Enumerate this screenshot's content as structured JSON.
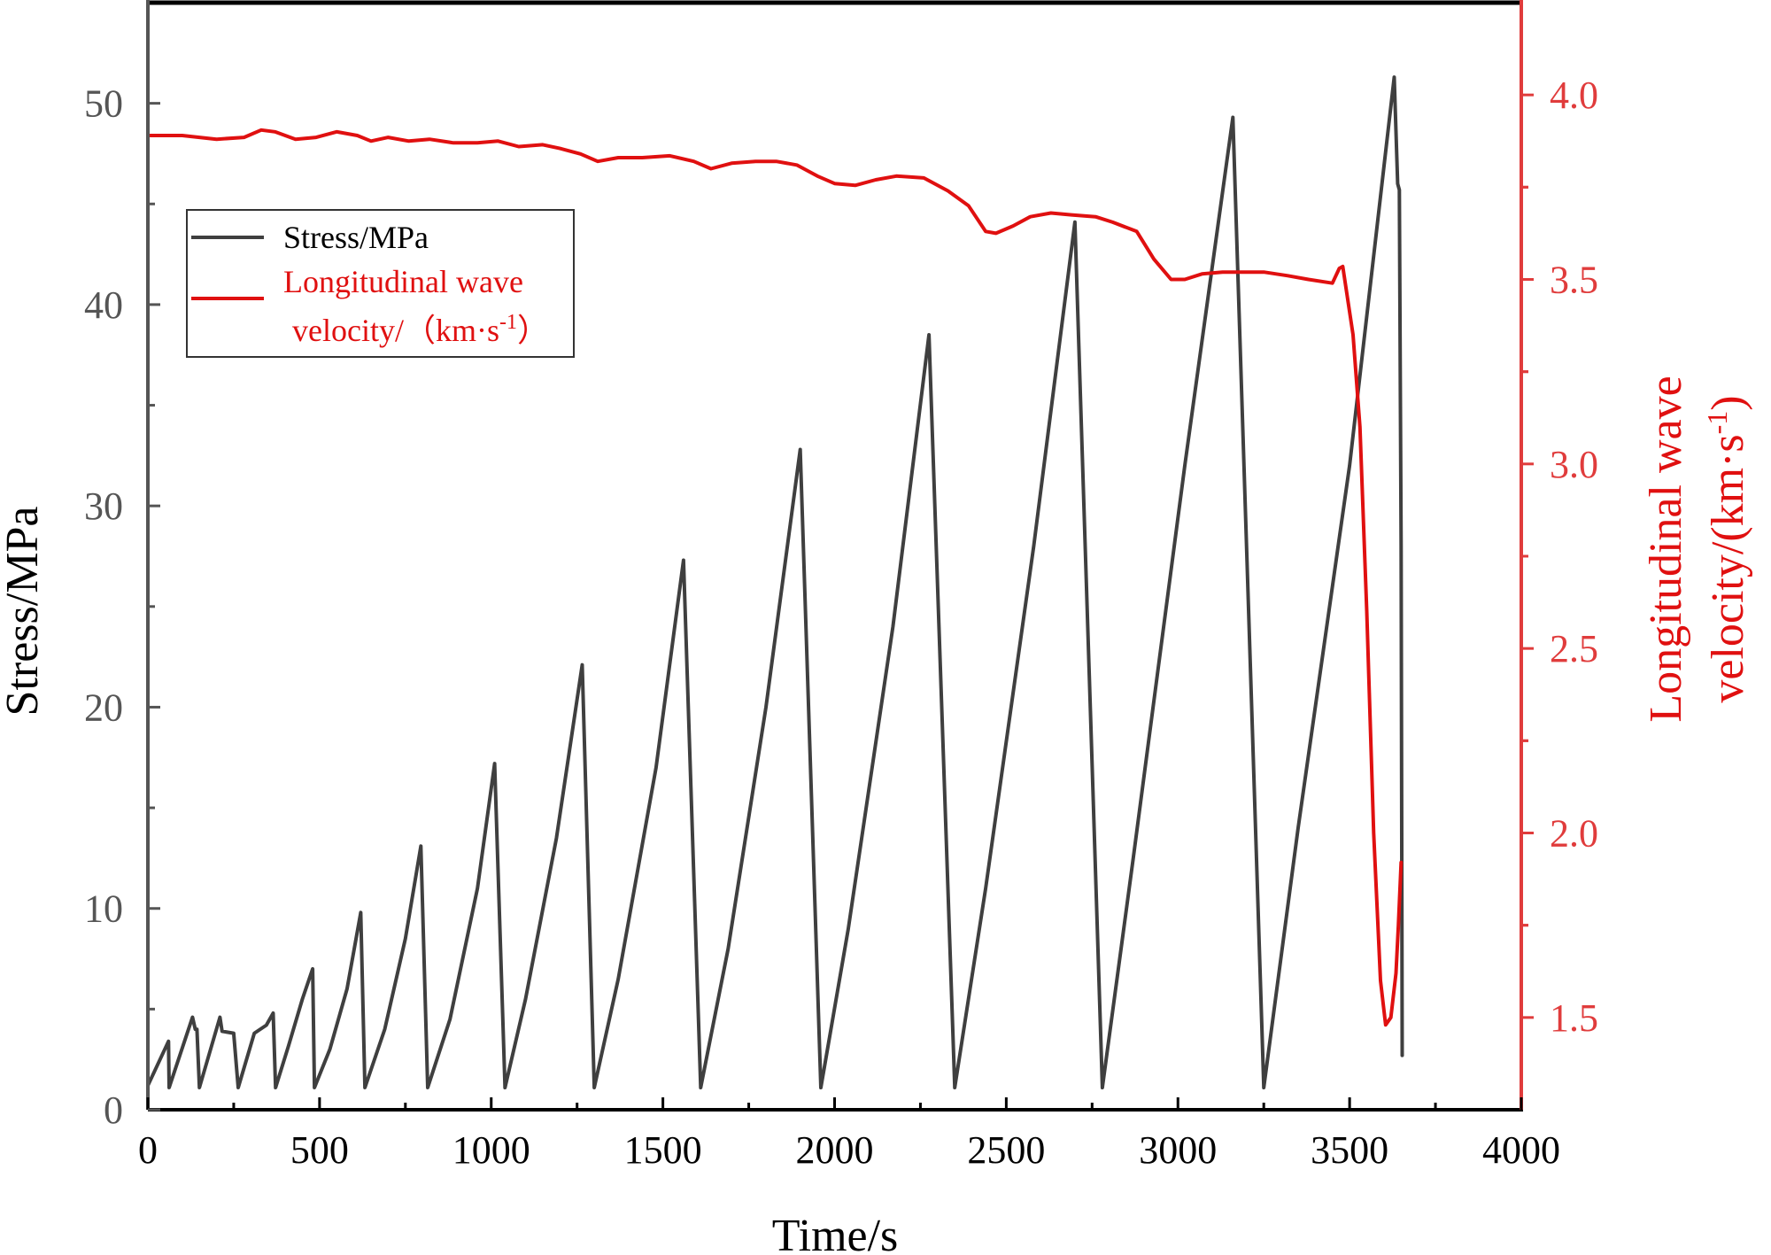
{
  "chart_data": {
    "type": "line",
    "xlabel": "Time/s",
    "ylabel_left": "Stress/MPa",
    "ylabel_right_line1": "Longitudinal wave",
    "ylabel_right_line2": "velocity/(km·s",
    "ylabel_right_sup": "-1",
    "ylabel_right_close": ")",
    "xlim": [
      0,
      4000
    ],
    "ylim_left": [
      0,
      55
    ],
    "ylim_right": [
      1.25,
      4.25
    ],
    "x_ticks": [
      0,
      500,
      1000,
      1500,
      2000,
      2500,
      3000,
      3500,
      4000
    ],
    "x_tick_labels": [
      "0",
      "500",
      "1000",
      "1500",
      "2000",
      "2500",
      "3000",
      "3500",
      "4000"
    ],
    "left_ticks": [
      0,
      10,
      20,
      30,
      40,
      50
    ],
    "left_tick_labels": [
      "0",
      "10",
      "20",
      "30",
      "40",
      "50"
    ],
    "right_ticks": [
      1.5,
      2.0,
      2.5,
      3.0,
      3.5,
      4.0
    ],
    "right_tick_labels": [
      "1.5",
      "2.0",
      "2.5",
      "3.0",
      "3.5",
      "4.0"
    ],
    "grid": false,
    "legend_position": "upper-left",
    "legend": {
      "stress_label": "Stress/MPa",
      "wave_label_line1": "Longitudinal wave",
      "wave_label_line2": "velocity/（km·s",
      "wave_label_sup": "-1",
      "wave_label_close": "）"
    },
    "colors": {
      "stress": "#3f3f3f",
      "wave": "#e01010",
      "right_axis": "#e03c3c",
      "axis": "#555555"
    },
    "series": [
      {
        "name": "Stress/MPa",
        "axis": "left",
        "points": [
          [
            0,
            1.2
          ],
          [
            60,
            3.4
          ],
          [
            62,
            1.1
          ],
          [
            130,
            4.6
          ],
          [
            138,
            4.0
          ],
          [
            143,
            4.0
          ],
          [
            150,
            1.1
          ],
          [
            210,
            4.6
          ],
          [
            216,
            3.9
          ],
          [
            250,
            3.8
          ],
          [
            263,
            1.1
          ],
          [
            310,
            3.8
          ],
          [
            345,
            4.2
          ],
          [
            365,
            4.8
          ],
          [
            372,
            1.1
          ],
          [
            410,
            3.2
          ],
          [
            450,
            5.5
          ],
          [
            480,
            7.0
          ],
          [
            485,
            1.1
          ],
          [
            530,
            3.0
          ],
          [
            580,
            6.0
          ],
          [
            620,
            9.8
          ],
          [
            632,
            1.1
          ],
          [
            690,
            4.0
          ],
          [
            750,
            8.5
          ],
          [
            795,
            13.1
          ],
          [
            815,
            1.1
          ],
          [
            880,
            4.5
          ],
          [
            960,
            11.0
          ],
          [
            1010,
            17.2
          ],
          [
            1040,
            1.1
          ],
          [
            1100,
            5.5
          ],
          [
            1190,
            13.5
          ],
          [
            1265,
            22.1
          ],
          [
            1300,
            1.1
          ],
          [
            1370,
            6.5
          ],
          [
            1480,
            17.0
          ],
          [
            1560,
            27.3
          ],
          [
            1610,
            1.1
          ],
          [
            1690,
            8.0
          ],
          [
            1800,
            20.0
          ],
          [
            1900,
            32.8
          ],
          [
            1960,
            1.1
          ],
          [
            2040,
            9.0
          ],
          [
            2170,
            24.0
          ],
          [
            2275,
            38.5
          ],
          [
            2350,
            1.1
          ],
          [
            2440,
            11.0
          ],
          [
            2580,
            28.0
          ],
          [
            2700,
            44.1
          ],
          [
            2780,
            1.1
          ],
          [
            2870,
            12.5
          ],
          [
            3020,
            32.0
          ],
          [
            3160,
            49.3
          ],
          [
            3250,
            1.1
          ],
          [
            3350,
            14.0
          ],
          [
            3500,
            32.0
          ],
          [
            3630,
            51.3
          ],
          [
            3640,
            46.0
          ],
          [
            3645,
            45.7
          ],
          [
            3648,
            35.0
          ],
          [
            3650,
            28.0
          ],
          [
            3653,
            2.7
          ]
        ]
      },
      {
        "name": "Longitudinal wave velocity/（km·s-1）",
        "axis": "right",
        "points": [
          [
            0,
            3.89
          ],
          [
            100,
            3.89
          ],
          [
            150,
            3.885
          ],
          [
            200,
            3.88
          ],
          [
            280,
            3.885
          ],
          [
            330,
            3.905
          ],
          [
            370,
            3.9
          ],
          [
            430,
            3.88
          ],
          [
            490,
            3.885
          ],
          [
            550,
            3.9
          ],
          [
            610,
            3.89
          ],
          [
            650,
            3.875
          ],
          [
            700,
            3.885
          ],
          [
            760,
            3.875
          ],
          [
            820,
            3.88
          ],
          [
            890,
            3.87
          ],
          [
            960,
            3.87
          ],
          [
            1020,
            3.875
          ],
          [
            1080,
            3.86
          ],
          [
            1150,
            3.865
          ],
          [
            1200,
            3.855
          ],
          [
            1260,
            3.84
          ],
          [
            1310,
            3.82
          ],
          [
            1370,
            3.83
          ],
          [
            1440,
            3.83
          ],
          [
            1520,
            3.835
          ],
          [
            1590,
            3.82
          ],
          [
            1640,
            3.8
          ],
          [
            1700,
            3.815
          ],
          [
            1770,
            3.82
          ],
          [
            1830,
            3.82
          ],
          [
            1890,
            3.81
          ],
          [
            1950,
            3.78
          ],
          [
            2000,
            3.76
          ],
          [
            2060,
            3.755
          ],
          [
            2120,
            3.77
          ],
          [
            2180,
            3.78
          ],
          [
            2260,
            3.775
          ],
          [
            2330,
            3.74
          ],
          [
            2390,
            3.7
          ],
          [
            2440,
            3.63
          ],
          [
            2470,
            3.625
          ],
          [
            2520,
            3.645
          ],
          [
            2570,
            3.67
          ],
          [
            2630,
            3.68
          ],
          [
            2690,
            3.675
          ],
          [
            2760,
            3.67
          ],
          [
            2810,
            3.655
          ],
          [
            2880,
            3.63
          ],
          [
            2930,
            3.555
          ],
          [
            2980,
            3.5
          ],
          [
            3020,
            3.5
          ],
          [
            3070,
            3.515
          ],
          [
            3130,
            3.52
          ],
          [
            3180,
            3.52
          ],
          [
            3250,
            3.52
          ],
          [
            3320,
            3.51
          ],
          [
            3380,
            3.5
          ],
          [
            3450,
            3.49
          ],
          [
            3470,
            3.53
          ],
          [
            3480,
            3.535
          ],
          [
            3510,
            3.35
          ],
          [
            3530,
            3.1
          ],
          [
            3550,
            2.6
          ],
          [
            3570,
            2.0
          ],
          [
            3590,
            1.6
          ],
          [
            3605,
            1.48
          ],
          [
            3620,
            1.5
          ],
          [
            3635,
            1.62
          ],
          [
            3642,
            1.75
          ],
          [
            3650,
            1.92
          ]
        ]
      }
    ]
  }
}
